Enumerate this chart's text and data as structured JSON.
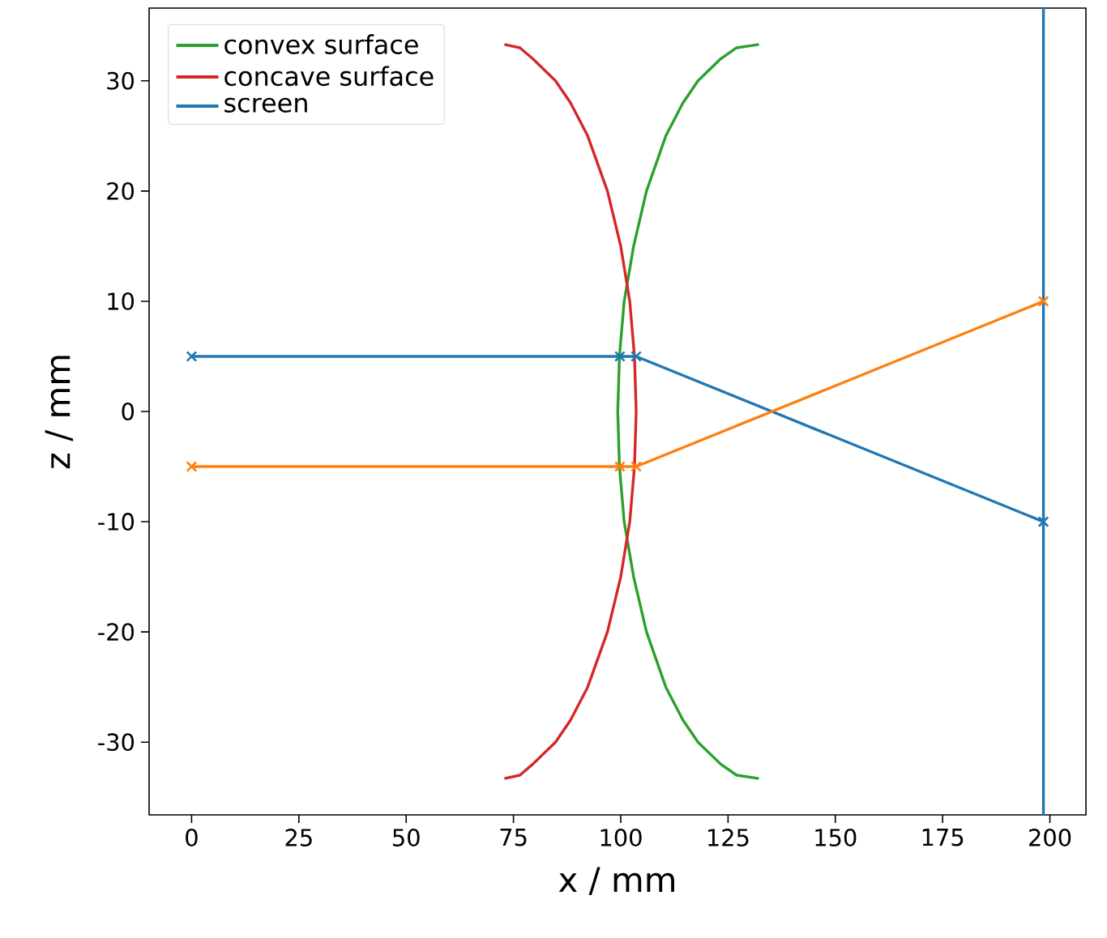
{
  "chart_data": {
    "type": "line",
    "xlabel": "x / mm",
    "ylabel": "z / mm",
    "xlim": [
      -9.9,
      208.4
    ],
    "ylim": [
      -36.6,
      36.6
    ],
    "xticks": [
      0,
      25,
      50,
      75,
      100,
      125,
      150,
      175,
      200
    ],
    "yticks": [
      -30,
      -20,
      -10,
      0,
      10,
      20,
      30
    ],
    "grid": false,
    "legend": "top left",
    "line_style": "solid",
    "series": [
      {
        "name": "convex surface",
        "color": "#2ca02c",
        "marker": "none",
        "x": [
          132.2,
          127.0,
          123.3,
          118.0,
          114.5,
          110.5,
          106.0,
          103.0,
          100.8,
          99.7,
          99.3,
          99.7,
          100.8,
          103.0,
          106.0,
          110.5,
          114.5,
          118.0,
          123.3,
          127.0,
          132.2
        ],
        "values": [
          33.3,
          33,
          32,
          30,
          28,
          25,
          20,
          15,
          10,
          5,
          0,
          -5,
          -10,
          -15,
          -20,
          -25,
          -28,
          -30,
          -32,
          -33,
          -33.3
        ]
      },
      {
        "name": "concave surface",
        "color": "#d62728",
        "marker": "none",
        "x": [
          72.9,
          76.5,
          79.5,
          84.8,
          88.3,
          92.3,
          96.9,
          100.0,
          102.1,
          103.2,
          103.6,
          103.2,
          102.1,
          100.0,
          96.9,
          92.3,
          88.3,
          84.8,
          79.5,
          76.5,
          72.9
        ],
        "values": [
          33.3,
          33,
          32,
          30,
          28,
          25,
          20,
          15,
          10,
          5,
          0,
          -5,
          -10,
          -15,
          -20,
          -25,
          -28,
          -30,
          -32,
          -33,
          -33.3
        ]
      },
      {
        "name": "screen",
        "color": "#1f77b4",
        "marker": "none",
        "x": [
          198.5,
          198.5
        ],
        "values": [
          -36.6,
          36.6
        ]
      },
      {
        "color": "#1f77b4",
        "marker": "cross",
        "x": [
          0,
          99.8,
          103.6,
          198.5
        ],
        "values": [
          5,
          5,
          5,
          -10
        ]
      },
      {
        "color": "#ff7f0e",
        "marker": "cross",
        "x": [
          0,
          99.8,
          103.6,
          198.5
        ],
        "values": [
          -5,
          -5,
          -5,
          10
        ]
      }
    ]
  }
}
